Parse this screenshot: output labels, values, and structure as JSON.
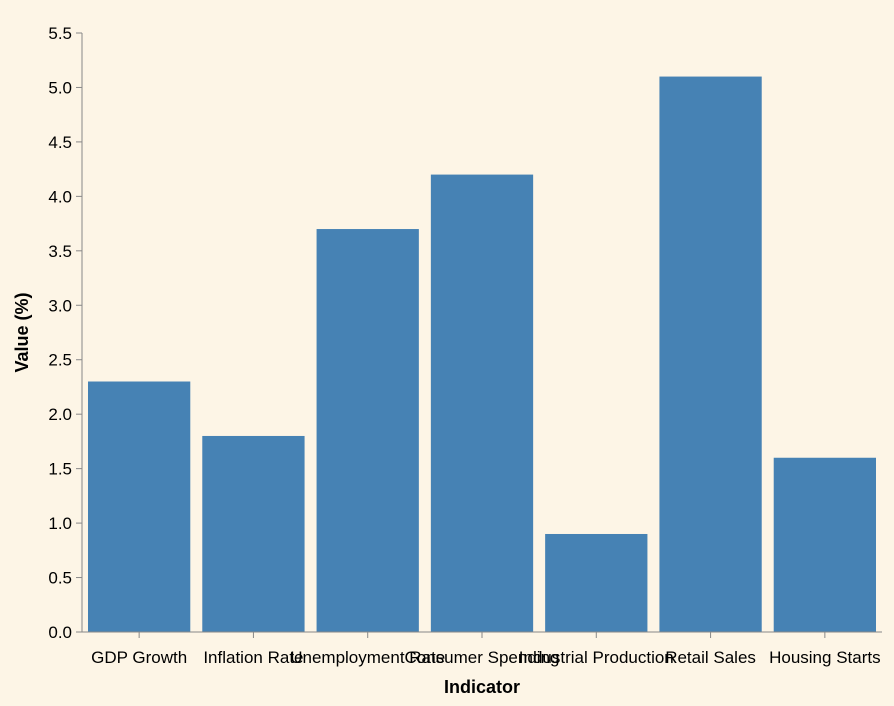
{
  "chart_data": {
    "type": "bar",
    "title": "",
    "xlabel": "Indicator",
    "ylabel": "Value (%)",
    "ylim": [
      0,
      5.5
    ],
    "y_ticks": [
      "0.0",
      "0.5",
      "1.0",
      "1.5",
      "2.0",
      "2.5",
      "3.0",
      "3.5",
      "4.0",
      "4.5",
      "5.0",
      "5.5"
    ],
    "categories": [
      "GDP Growth",
      "Inflation Rate",
      "Unemployment Rate",
      "Consumer Spending",
      "Industrial Production",
      "Retail Sales",
      "Housing Starts"
    ],
    "values": [
      2.3,
      1.8,
      3.7,
      4.2,
      0.9,
      5.1,
      1.6
    ],
    "grid": false,
    "colors": {
      "bar": "#4682b4",
      "axis": "#888888",
      "background": "#fdf5e6"
    }
  }
}
